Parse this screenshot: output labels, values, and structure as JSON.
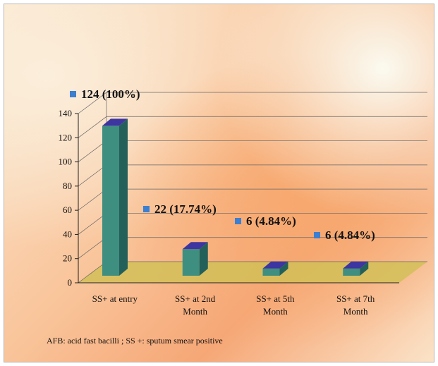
{
  "chart_data": {
    "type": "bar",
    "categories": [
      "SS+ at entry",
      "SS+ at 2nd Month",
      "SS+ at 5th Month",
      "SS+ at 7th Month"
    ],
    "category_lines": [
      [
        "SS+ at entry"
      ],
      [
        "SS+ at 2nd",
        "Month"
      ],
      [
        "SS+ at 5th",
        "Month"
      ],
      [
        "SS+ at 7th",
        "Month"
      ]
    ],
    "values": [
      124,
      22,
      6,
      6
    ],
    "data_labels": [
      "124 (100%)",
      "22 (17.74%)",
      "6 (4.84%)",
      "6 (4.84%)"
    ],
    "ylim": [
      0,
      140
    ],
    "yticks": [
      0,
      20,
      40,
      60,
      80,
      100,
      120,
      140
    ],
    "grid": true,
    "three_d": true,
    "legend": "none",
    "colors": {
      "bar_front": "#3f8f80",
      "bar_side": "#24605a",
      "bar_top": "#3d35a0",
      "marker": "#3c7fd0",
      "floor": "#d2bf58",
      "grid": "#666666"
    }
  },
  "footnote": "AFB: acid fast bacilli ; SS +: sputum smear positive"
}
